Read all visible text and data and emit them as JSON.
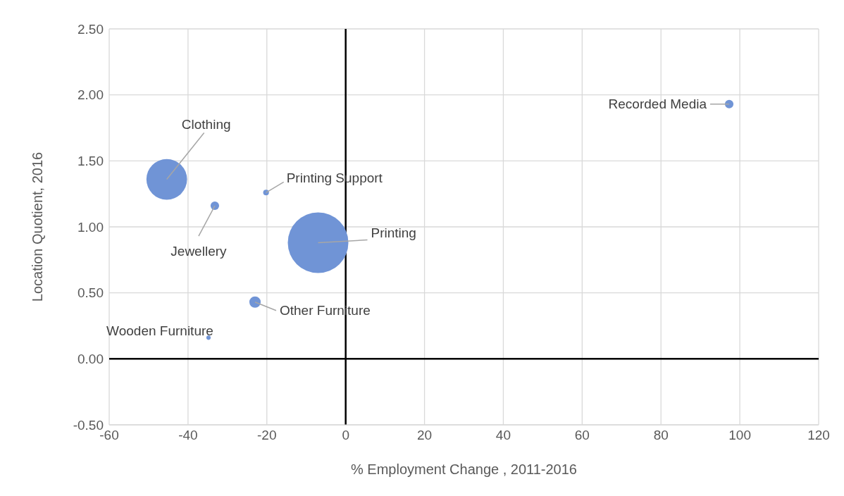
{
  "chart_data": {
    "type": "bubble",
    "xlabel": "% Employment Change , 2011-2016",
    "ylabel": "Location Quotient, 2016",
    "series": [
      {
        "color": "#7094d6",
        "x": [
          -45.4,
          -33.2,
          -20.2,
          -7.0,
          -23.0,
          -34.8,
          97.3
        ],
        "values": [
          1.36,
          1.16,
          1.26,
          0.88,
          0.43,
          0.16,
          1.93
        ],
        "sizes": [
          0.45,
          0.02,
          0.009,
          1,
          0.035,
          0.005,
          0.02
        ]
      }
    ],
    "annotations": [
      {
        "text": "Clothing",
        "x": -45.4,
        "y": 1.36
      },
      {
        "text": "Jewellery",
        "x": -33.2,
        "y": 1.16
      },
      {
        "text": "Printing Support",
        "x": -20.2,
        "y": 1.26
      },
      {
        "text": "Printing",
        "x": -7.0,
        "y": 0.88
      },
      {
        "text": "Other Furniture",
        "x": -23.0,
        "y": 0.43
      },
      {
        "text": "Wooden Furniture",
        "x": -34.8,
        "y": 0.16
      },
      {
        "text": "Recorded Media",
        "x": 97.3,
        "y": 1.93
      }
    ],
    "xlim": [
      -60,
      120
    ],
    "xticks": [
      -60,
      -40,
      -20,
      0,
      20,
      40,
      60,
      80,
      100,
      120
    ],
    "ylim": [
      -0.5,
      2.5
    ],
    "yticks": [
      {
        "value": -0.5,
        "label": "-0.50"
      },
      {
        "value": 0,
        "label": "0.00"
      },
      {
        "value": 0.5,
        "label": "0.50"
      },
      {
        "value": 1,
        "label": "1.00"
      },
      {
        "value": 1.5,
        "label": "1.50"
      },
      {
        "value": 2,
        "label": "2.00"
      },
      {
        "value": 2.5,
        "label": "2.50"
      }
    ],
    "grid": true
  }
}
